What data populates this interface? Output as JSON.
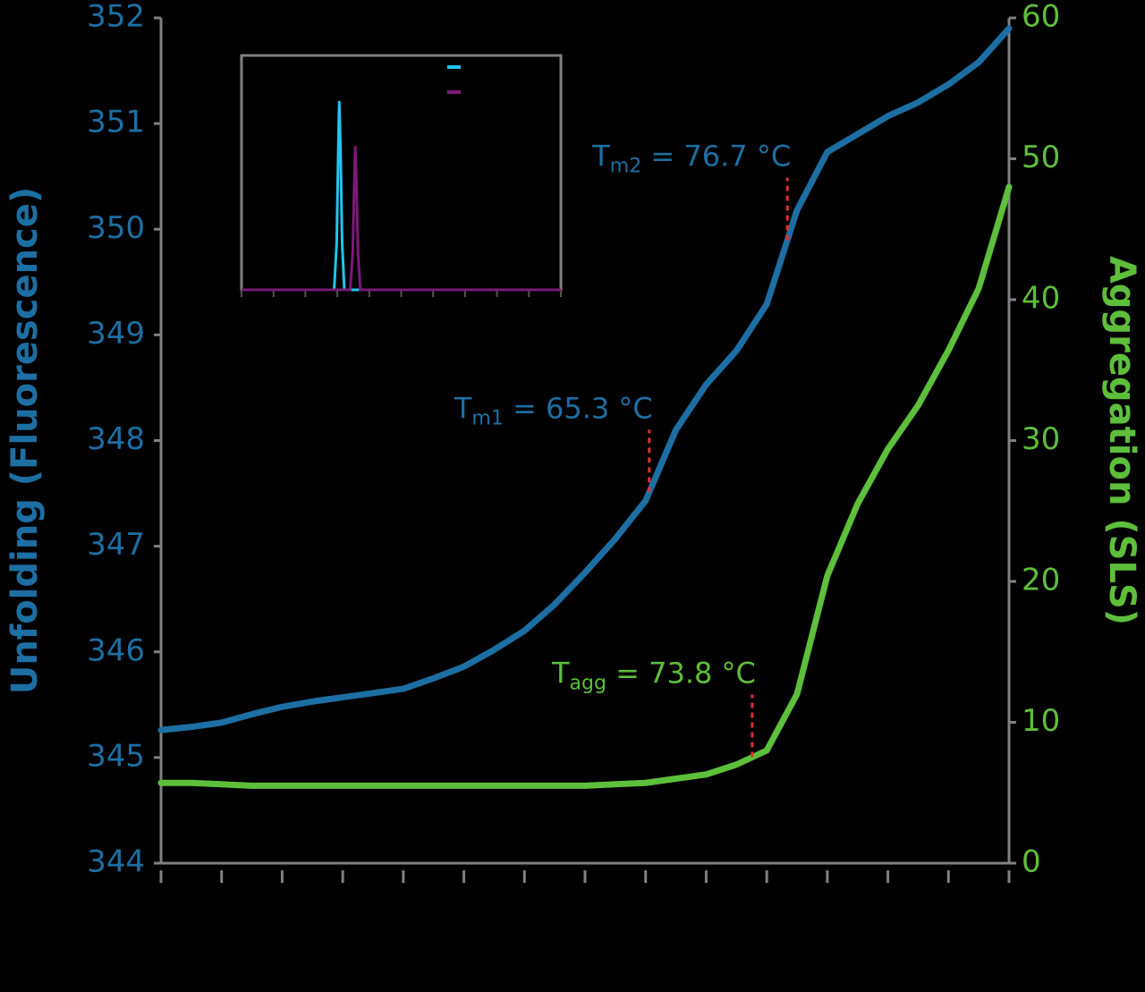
{
  "chart_data": [
    {
      "type": "line",
      "y_label": "Unfolding (Fluorescence)",
      "y2_label": "Aggregation (SLS)",
      "x": [
        25,
        27.5,
        30,
        32.5,
        35,
        37.5,
        40,
        42.5,
        45,
        47.5,
        50,
        52.5,
        55,
        57.5,
        60,
        62.5,
        65,
        67.5,
        70,
        72.5,
        75,
        77.5,
        80,
        82.5,
        85,
        87.5,
        90,
        92.5,
        95
      ],
      "xlim": [
        25,
        95
      ],
      "xticks": [
        25,
        30,
        35,
        40,
        45,
        50,
        55,
        60,
        65,
        70,
        75,
        80,
        85,
        90,
        95
      ],
      "ylim": [
        344,
        352
      ],
      "yticks": [
        344,
        345,
        346,
        347,
        348,
        349,
        350,
        351,
        352
      ],
      "y2lim": [
        0,
        60
      ],
      "y2ticks": [
        0,
        10,
        20,
        30,
        40,
        50,
        60
      ],
      "series": [
        {
          "color": "#1d6fa3",
          "values": [
            345.26,
            345.29,
            345.33,
            345.41,
            345.48,
            345.53,
            345.57,
            345.61,
            345.65,
            345.75,
            345.86,
            346.02,
            346.2,
            346.45,
            346.75,
            347.07,
            347.43,
            348.1,
            348.53,
            348.85,
            349.29,
            350.18,
            350.73,
            350.9,
            351.07,
            351.2,
            351.37,
            351.58,
            351.9
          ]
        },
        {
          "color": "#5dbf3b",
          "axis": "y2",
          "values": [
            5.7,
            5.7,
            5.6,
            5.5,
            5.5,
            5.5,
            5.5,
            5.5,
            5.5,
            5.5,
            5.5,
            5.5,
            5.5,
            5.5,
            5.5,
            5.6,
            5.7,
            6.0,
            6.3,
            7.0,
            8.0,
            12.0,
            20.4,
            25.5,
            29.4,
            32.5,
            36.4,
            40.8,
            48.0
          ]
        }
      ],
      "annotations": [
        {
          "main": "T",
          "sub": "m1",
          "rest": " = 65.3 °C",
          "x": 65.3
        },
        {
          "main": "T",
          "sub": "m2",
          "rest": " = 76.7 °C",
          "x": 76.7
        },
        {
          "main": "T",
          "sub": "agg",
          "rest": " = 73.8 °C",
          "x": 73.8,
          "axis": "y2"
        }
      ],
      "marker_color": "#e03030"
    },
    {
      "type": "inset",
      "xlim": [
        0,
        100
      ],
      "ylim": [
        0,
        100
      ],
      "series": [
        {
          "color": "#22c4ee",
          "x": [
            0,
            29,
            29.8,
            30.3,
            30.6,
            31.0,
            31.5,
            32.2,
            100
          ],
          "values": [
            0,
            0,
            20,
            60,
            80.5,
            60,
            20,
            0,
            0
          ]
        },
        {
          "color": "#7a1a78",
          "x": [
            0,
            34,
            34.8,
            35.3,
            35.6,
            36.0,
            36.5,
            37.2,
            100
          ],
          "values": [
            0,
            0,
            15,
            45,
            61.4,
            45,
            15,
            0,
            0
          ]
        }
      ]
    }
  ]
}
